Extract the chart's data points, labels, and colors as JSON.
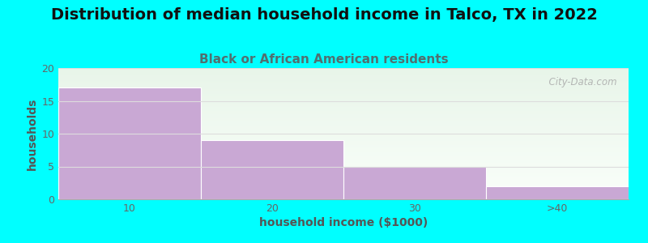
{
  "title": "Distribution of median household income in Talco, TX in 2022",
  "subtitle": "Black or African American residents",
  "categories": [
    "10",
    "20",
    "30",
    ">40"
  ],
  "values": [
    17,
    9,
    5,
    2
  ],
  "bar_color": "#c9a8d4",
  "background_color": "#00ffff",
  "plot_bg_top": "#e8f5e9",
  "plot_bg_bottom": "#f8fff8",
  "xlabel": "household income ($1000)",
  "ylabel": "households",
  "ylim": [
    0,
    20
  ],
  "yticks": [
    0,
    5,
    10,
    15,
    20
  ],
  "title_fontsize": 14,
  "subtitle_fontsize": 11,
  "subtitle_color": "#507070",
  "axis_label_fontsize": 10,
  "watermark_text": "  City-Data.com",
  "grid_color": "#dddddd",
  "title_color": "#111111",
  "tick_color": "#666666"
}
